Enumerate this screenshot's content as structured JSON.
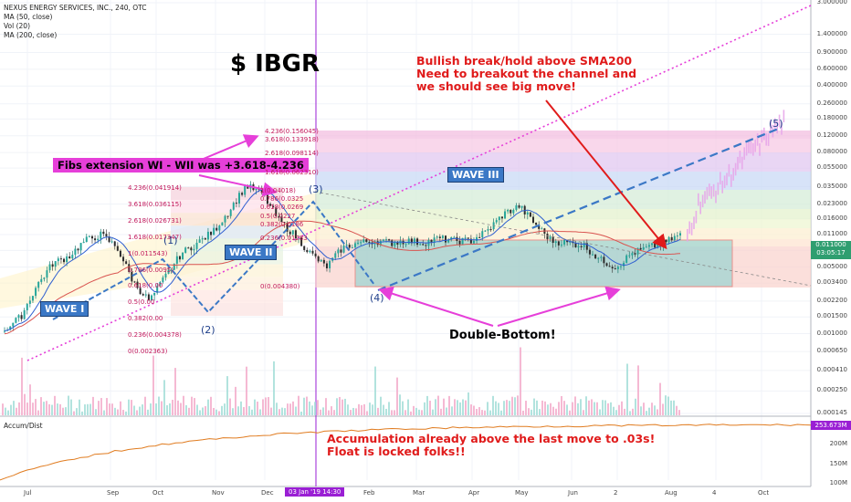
{
  "legend": {
    "symbol": "NEXUS ENERGY SERVICES, INC., 240, OTC",
    "ma50": "MA (50, close)",
    "vol": "Vol (20)",
    "ma200": "MA (200, close)"
  },
  "ticker_title": "$ IBGR",
  "notes": {
    "bullish_line1": "Bullish break/hold above SMA200",
    "bullish_line2": "Need to breakout the channel and",
    "bullish_line3": "we should see big move!",
    "double_bottom": "Double-Bottom!",
    "accum_line1": "Accumulation already above the last move to .03s!",
    "accum_line2": "Float is locked folks!!",
    "fib_note": "Fibs extension WI - WII was +3.618-4.236"
  },
  "waves": {
    "wave1_label": "WAVE I",
    "wave2_label": "WAVE II",
    "wave3_label": "WAVE III",
    "w1": "(1)",
    "w2": "(2)",
    "w3": "(3)",
    "w4": "(4)",
    "w5": "(5)"
  },
  "fib_left": [
    {
      "text": "4.236(0.041914)"
    },
    {
      "text": "3.618(0.036115)"
    },
    {
      "text": "2.618(0.026731)"
    },
    {
      "text": "1.618(0.017347)"
    },
    {
      "text": "1(0.011543)"
    },
    {
      "text": "0.786(0.0095)"
    },
    {
      "text": "0.618(0.00"
    },
    {
      "text": "0.5(0.00"
    },
    {
      "text": "0.382(0.00"
    },
    {
      "text": "0.236(0.004378)"
    },
    {
      "text": "0(0.002363)"
    }
  ],
  "fib_right": [
    {
      "text": "4.236(0.156045)"
    },
    {
      "text": "3.618(0.133918)"
    },
    {
      "text": "2.618(0.098114)"
    },
    {
      "text": "1.618(0.062310)"
    },
    {
      "text": "1(0.04018)"
    },
    {
      "text": "0.786(0.0325"
    },
    {
      "text": "0.618(0.0269"
    },
    {
      "text": "0.5(0.0227"
    },
    {
      "text": "0.382(0.0186"
    },
    {
      "text": "0.236(0.01283"
    },
    {
      "text": "0(0.004380)"
    }
  ],
  "y_axis": {
    "ticks": [
      "3.000000",
      "1.400000",
      "0.900000",
      "0.600000",
      "0.400000",
      "0.260000",
      "0.180000",
      "0.120000",
      "0.080000",
      "0.055000",
      "0.035000",
      "0.023000",
      "0.016000",
      "0.011000",
      "0.007500",
      "0.005000",
      "0.003400",
      "0.002200",
      "0.001500",
      "0.001000",
      "0.000650",
      "0.000410",
      "0.000250",
      "0.000145"
    ],
    "price_badge_value": "0.011000",
    "price_badge_time": "03:05:17",
    "accum_ticks": [
      "200M",
      "150M",
      "100M"
    ],
    "accum_badge": "253.673M"
  },
  "x_axis": {
    "ticks": [
      "Jul",
      "Sep",
      "Oct",
      "Nov",
      "Dec",
      "Feb",
      "Mar",
      "Apr",
      "May",
      "Jun",
      "2",
      "Aug",
      "4",
      "Oct"
    ],
    "date_badge": "03 Jan '19   14:30"
  },
  "accum_label": "Accum/Dist",
  "colors": {
    "bull": "#26a69a",
    "bear": "#ef5350",
    "ma50": "#2f5fd0",
    "ma200": "#d9534f",
    "magenta": "#e63fd9",
    "red_note": "#e01b1b",
    "wave_box": "#3b78c6"
  },
  "chart_data": {
    "type": "line",
    "title": "NEXUS ENERGY SERVICES, INC., 240, OTC",
    "y_scale": "log",
    "ylim": [
      0.000145,
      3.0
    ],
    "x_categories": [
      "Jul",
      "Sep",
      "Oct",
      "Nov",
      "Dec",
      "Jan",
      "Feb",
      "Mar",
      "Apr",
      "May",
      "Jun",
      "Jul",
      "Aug",
      "Sep",
      "Oct"
    ],
    "price_path": [
      0.0011,
      0.0015,
      0.0032,
      0.0055,
      0.0065,
      0.0095,
      0.011,
      0.008,
      0.0035,
      0.0022,
      0.004,
      0.007,
      0.009,
      0.012,
      0.02,
      0.036,
      0.03,
      0.016,
      0.011,
      0.007,
      0.005,
      0.008,
      0.009,
      0.0095,
      0.009,
      0.0095,
      0.009,
      0.01,
      0.0095,
      0.0095,
      0.012,
      0.018,
      0.022,
      0.014,
      0.0095,
      0.009,
      0.0085,
      0.006,
      0.005,
      0.007,
      0.008,
      0.009,
      0.011
    ],
    "projection": [
      0.011,
      0.025,
      0.03,
      0.04,
      0.055,
      0.08,
      0.1,
      0.14,
      0.17
    ],
    "current_price": 0.011,
    "accum_dist_last": "253.673M",
    "series": [
      {
        "name": "MA (50, close)"
      },
      {
        "name": "MA (200, close)"
      }
    ]
  }
}
